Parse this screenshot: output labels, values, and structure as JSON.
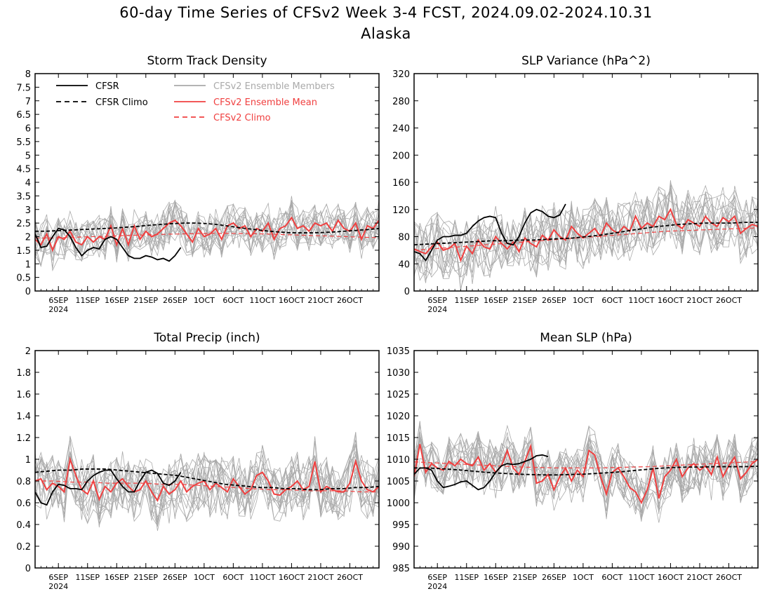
{
  "title": "60-day Time Series of CFSv2 Week 3-4 FCST, 2024.09.02-2024.10.31",
  "subtitle": "Alaska",
  "x_tick_labels": [
    "6SEP",
    "11SEP",
    "16SEP",
    "21SEP",
    "26SEP",
    "1OCT",
    "6OCT",
    "11OCT",
    "16OCT",
    "21OCT",
    "26OCT"
  ],
  "x_year_label": "2024",
  "legend": {
    "cfsr": "CFSR",
    "cfsr_climo": "CFSR Climo",
    "ens_members": "CFSv2 Ensemble Members",
    "ens_mean": "CFSv2 Ensemble Mean",
    "cfsv2_climo": "CFSv2 Climo"
  },
  "colors": {
    "cfsr": "#000000",
    "ensemble_members": "#aaaaaa",
    "ensemble_mean": "#f04040",
    "axes": "#000000"
  },
  "chart_data": [
    {
      "type": "line",
      "title": "Storm Track Density",
      "ylim": [
        0,
        8
      ],
      "yticks": [
        0,
        0.5,
        1,
        1.5,
        2,
        2.5,
        3,
        3.5,
        4,
        4.5,
        5,
        5.5,
        6,
        6.5,
        7,
        7.5,
        8
      ],
      "xlim": [
        0,
        59
      ],
      "x_tick_days": [
        4,
        9,
        14,
        19,
        24,
        29,
        34,
        39,
        44,
        49,
        54
      ],
      "cfsr": [
        2.1,
        1.6,
        1.65,
        2.0,
        2.3,
        2.25,
        2.0,
        1.6,
        1.3,
        1.5,
        1.6,
        1.55,
        1.9,
        2.0,
        1.9,
        1.6,
        1.3,
        1.2,
        1.2,
        1.3,
        1.25,
        1.15,
        1.2,
        1.1,
        1.3,
        1.6
      ],
      "cfsr_climo": [
        2.2,
        2.2,
        2.22,
        2.24,
        2.26,
        2.28,
        2.3,
        2.32,
        2.35,
        2.38,
        2.42,
        2.45,
        2.48,
        2.5,
        2.5,
        2.48,
        2.44,
        2.38,
        2.32,
        2.27,
        2.22,
        2.18,
        2.15,
        2.14,
        2.14,
        2.15,
        2.17,
        2.2,
        2.23,
        2.26,
        2.3
      ],
      "ens_mean": [
        1.9,
        1.7,
        2.1,
        1.5,
        2.0,
        1.9,
        2.2,
        1.8,
        1.7,
        2.0,
        1.8,
        2.0,
        1.9,
        2.4,
        1.7,
        2.3,
        1.7,
        2.4,
        1.9,
        2.2,
        2.0,
        2.1,
        2.3,
        2.5,
        2.6,
        2.4,
        2.1,
        1.8,
        2.3,
        2.0,
        2.1,
        2.3,
        1.9,
        2.4,
        2.5,
        2.3,
        2.4,
        2.0,
        2.3,
        2.2,
        2.5,
        1.9,
        2.3,
        2.4,
        2.7,
        2.3,
        2.4,
        2.2,
        2.5,
        2.4,
        2.5,
        2.2,
        2.6,
        2.3,
        2.2,
        2.5,
        1.9,
        2.4,
        2.3,
        2.6
      ],
      "cfsv2_climo": [
        1.95,
        1.95,
        1.97,
        1.99,
        2.01,
        2.03,
        2.05,
        2.07,
        2.09,
        2.1,
        2.11,
        2.12,
        2.12,
        2.11,
        2.1,
        2.08,
        2.06,
        2.04,
        2.02,
        2.0,
        1.98,
        1.96
      ],
      "members_center": 2.0,
      "members_spread": 0.8
    },
    {
      "type": "line",
      "title": "SLP Variance (hPa^2)",
      "ylim": [
        0,
        320
      ],
      "yticks": [
        0,
        40,
        80,
        120,
        160,
        200,
        240,
        280,
        320
      ],
      "xlim": [
        0,
        59
      ],
      "x_tick_days": [
        4,
        9,
        14,
        19,
        24,
        29,
        34,
        39,
        44,
        49,
        54
      ],
      "cfsr": [
        58,
        55,
        45,
        60,
        75,
        80,
        80,
        82,
        82,
        85,
        95,
        103,
        108,
        110,
        108,
        85,
        70,
        68,
        80,
        100,
        115,
        120,
        117,
        110,
        108,
        112,
        128
      ],
      "cfsr_climo": [
        68,
        69,
        70,
        71,
        72,
        73,
        74,
        74,
        75,
        75,
        76,
        77,
        78,
        80,
        82,
        85,
        88,
        91,
        94,
        96,
        98,
        99,
        100,
        100,
        100,
        101,
        101
      ],
      "ens_mean": [
        62,
        58,
        55,
        65,
        72,
        60,
        63,
        70,
        45,
        66,
        55,
        75,
        65,
        62,
        80,
        70,
        62,
        72,
        58,
        78,
        70,
        65,
        82,
        75,
        90,
        80,
        75,
        95,
        85,
        78,
        85,
        92,
        80,
        100,
        90,
        85,
        95,
        88,
        110,
        92,
        100,
        95,
        110,
        105,
        120,
        98,
        92,
        105,
        100,
        95,
        110,
        100,
        95,
        108,
        102,
        110,
        85,
        92,
        98,
        95
      ],
      "cfsv2_climo": [
        60,
        62,
        64,
        66,
        68,
        70,
        72,
        74,
        76,
        78,
        80,
        82,
        84,
        86,
        88,
        89,
        90,
        91,
        92,
        93
      ],
      "members_center": 85,
      "members_spread": 45
    },
    {
      "type": "line",
      "title": "Total Precip (inch)",
      "ylim": [
        0,
        2
      ],
      "yticks": [
        0,
        0.2,
        0.4,
        0.6,
        0.8,
        1,
        1.2,
        1.4,
        1.6,
        1.8,
        2
      ],
      "xlim": [
        0,
        59
      ],
      "x_tick_days": [
        4,
        9,
        14,
        19,
        24,
        29,
        34,
        39,
        44,
        49,
        54
      ],
      "cfsr": [
        0.7,
        0.6,
        0.58,
        0.7,
        0.77,
        0.76,
        0.73,
        0.73,
        0.72,
        0.8,
        0.85,
        0.88,
        0.9,
        0.9,
        0.82,
        0.75,
        0.7,
        0.7,
        0.8,
        0.88,
        0.9,
        0.87,
        0.78,
        0.76,
        0.8,
        0.88
      ],
      "cfsr_climo": [
        0.88,
        0.89,
        0.9,
        0.9,
        0.91,
        0.91,
        0.91,
        0.9,
        0.89,
        0.88,
        0.87,
        0.86,
        0.85,
        0.83,
        0.81,
        0.79,
        0.77,
        0.76,
        0.75,
        0.74,
        0.74,
        0.73,
        0.73,
        0.72,
        0.72,
        0.73,
        0.73,
        0.74,
        0.74,
        0.75
      ],
      "ens_mean": [
        0.8,
        0.82,
        0.72,
        0.78,
        0.75,
        0.7,
        1.0,
        0.85,
        0.72,
        0.68,
        0.8,
        0.63,
        0.75,
        0.7,
        0.78,
        0.82,
        0.75,
        0.7,
        0.72,
        0.8,
        0.7,
        0.62,
        0.75,
        0.68,
        0.72,
        0.8,
        0.7,
        0.75,
        0.78,
        0.8,
        0.72,
        0.78,
        0.74,
        0.7,
        0.82,
        0.75,
        0.68,
        0.72,
        0.85,
        0.88,
        0.8,
        0.68,
        0.67,
        0.72,
        0.75,
        0.8,
        0.72,
        0.75,
        0.98,
        0.7,
        0.75,
        0.72,
        0.7,
        0.7,
        0.78,
        0.98,
        0.8,
        0.72,
        0.7,
        0.75
      ],
      "cfsv2_climo": [
        0.8,
        0.8,
        0.79,
        0.79,
        0.78,
        0.78,
        0.78,
        0.77,
        0.77,
        0.76,
        0.75,
        0.74,
        0.73,
        0.72,
        0.72,
        0.71,
        0.71,
        0.71,
        0.7,
        0.7
      ],
      "members_center": 0.77,
      "members_spread": 0.28
    },
    {
      "type": "line",
      "title": "Mean SLP (hPa)",
      "ylim": [
        985,
        1035
      ],
      "yticks": [
        985,
        990,
        995,
        1000,
        1005,
        1010,
        1015,
        1020,
        1025,
        1030,
        1035
      ],
      "xlim": [
        0,
        59
      ],
      "x_tick_days": [
        4,
        9,
        14,
        19,
        24,
        29,
        34,
        39,
        44,
        49,
        54
      ],
      "cfsr": [
        1006.5,
        1008.0,
        1008.0,
        1007.5,
        1005.0,
        1003.5,
        1003.8,
        1004.2,
        1004.8,
        1005.0,
        1004.0,
        1003.0,
        1003.5,
        1005.0,
        1007.0,
        1008.5,
        1009.0,
        1008.8,
        1009.0,
        1009.5,
        1010.0,
        1010.8,
        1011.0,
        1010.6
      ],
      "cfsr_climo": [
        1008.0,
        1008.0,
        1007.8,
        1007.6,
        1007.3,
        1007.0,
        1006.8,
        1006.6,
        1006.5,
        1006.4,
        1006.4,
        1006.5,
        1006.6,
        1006.8,
        1007.0,
        1007.3,
        1007.6,
        1007.9,
        1008.1,
        1008.2,
        1008.2,
        1008.3,
        1008.3,
        1008.3,
        1008.4
      ],
      "ens_mean": [
        1006.0,
        1013.5,
        1007.0,
        1009.0,
        1008.0,
        1007.5,
        1009.5,
        1008.5,
        1010.0,
        1009.0,
        1008.5,
        1010.5,
        1007.5,
        1009.0,
        1007.0,
        1008.5,
        1012.0,
        1008.0,
        1006.5,
        1009.5,
        1013.0,
        1004.5,
        1005.0,
        1006.5,
        1003.0,
        1006.0,
        1008.0,
        1005.0,
        1007.5,
        1006.0,
        1012.0,
        1011.0,
        1006.0,
        1002.0,
        1007.0,
        1008.0,
        1006.0,
        1003.5,
        1002.5,
        1000.0,
        1003.0,
        1008.0,
        1001.0,
        1006.0,
        1007.5,
        1010.0,
        1006.0,
        1008.0,
        1009.0,
        1007.5,
        1008.5,
        1006.5,
        1010.5,
        1006.0,
        1008.5,
        1010.5,
        1005.5,
        1007.0,
        1009.0,
        1010.0
      ],
      "cfsv2_climo": [
        1009.4,
        1009.2,
        1009.0,
        1008.8,
        1008.6,
        1008.4,
        1008.2,
        1008.1,
        1008.0,
        1008.0,
        1008.0,
        1008.1,
        1008.2,
        1008.3,
        1008.5,
        1008.7,
        1008.9,
        1009.1,
        1009.3,
        1009.5
      ],
      "members_center": 1007.5,
      "members_spread": 6
    }
  ]
}
